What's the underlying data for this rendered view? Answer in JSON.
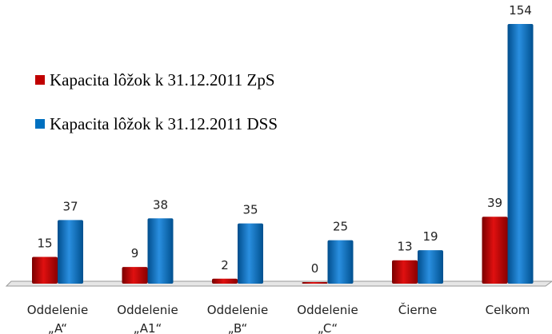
{
  "chart_data": {
    "type": "bar",
    "categories": [
      "Oddelenie\n„A“",
      "Oddelenie\n„A1“",
      "Oddelenie\n„B“",
      "Oddelenie\n„C“",
      "Čierne",
      "Celkom"
    ],
    "series": [
      {
        "name": "Kapacita lôžok k 31.12.2011 ZpS",
        "color": "#c00000",
        "values": [
          15,
          9,
          2,
          0,
          13,
          39
        ]
      },
      {
        "name": "Kapacita lôžok k 31.12.2011 DSS",
        "color": "#0070c0",
        "values": [
          37,
          38,
          35,
          25,
          19,
          154
        ]
      }
    ],
    "legend": "upper left"
  }
}
